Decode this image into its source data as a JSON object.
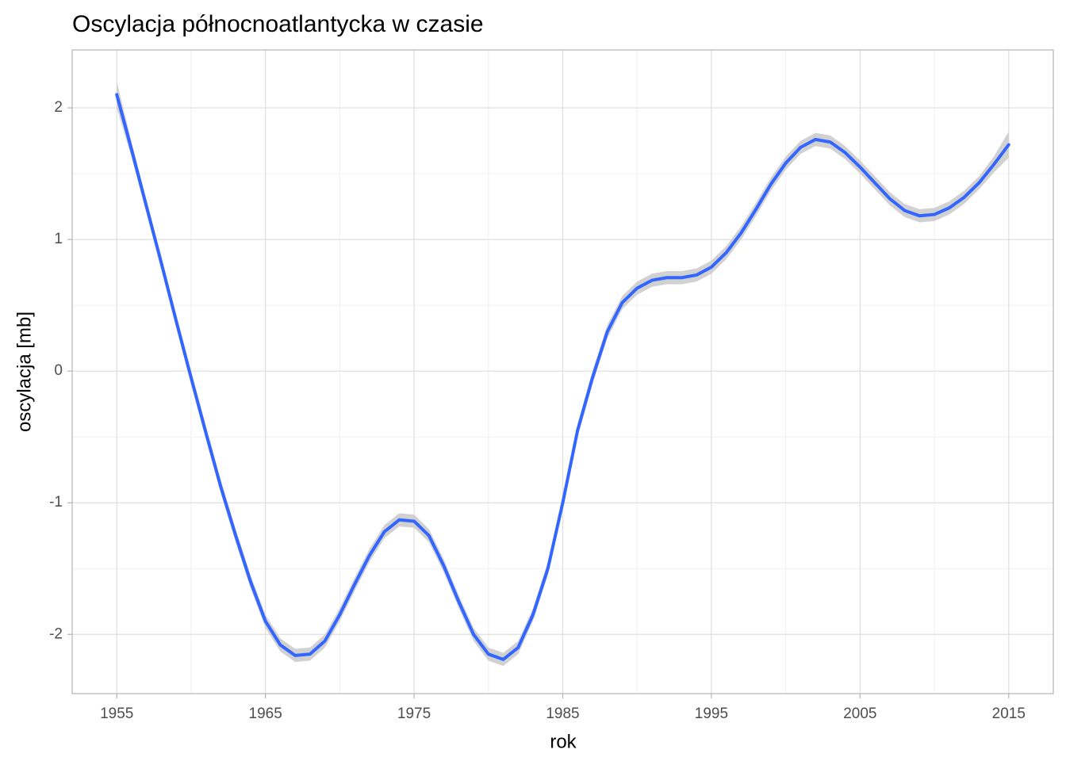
{
  "chart_data": {
    "type": "line",
    "title": "Oscylacja północnoatlantycka w czasie",
    "xlabel": "rok",
    "ylabel": "oscylacja [mb]",
    "x": [
      1955,
      1956,
      1957,
      1958,
      1959,
      1960,
      1961,
      1962,
      1963,
      1964,
      1965,
      1966,
      1967,
      1968,
      1969,
      1970,
      1971,
      1972,
      1973,
      1974,
      1975,
      1976,
      1977,
      1978,
      1979,
      1980,
      1981,
      1982,
      1983,
      1984,
      1985,
      1986,
      1987,
      1988,
      1989,
      1990,
      1991,
      1992,
      1993,
      1994,
      1995,
      1996,
      1997,
      1998,
      1999,
      2000,
      2001,
      2002,
      2003,
      2004,
      2005,
      2006,
      2007,
      2008,
      2009,
      2010,
      2011,
      2012,
      2013,
      2014,
      2015
    ],
    "series": [
      {
        "color": "#3366ff",
        "values": [
          2.1,
          1.68,
          1.25,
          0.82,
          0.38,
          -0.05,
          -0.47,
          -0.88,
          -1.25,
          -1.6,
          -1.9,
          -2.08,
          -2.16,
          -2.15,
          -2.05,
          -1.85,
          -1.62,
          -1.4,
          -1.22,
          -1.13,
          -1.14,
          -1.25,
          -1.48,
          -1.75,
          -2.0,
          -2.15,
          -2.19,
          -2.1,
          -1.85,
          -1.5,
          -1.0,
          -0.45,
          -0.05,
          0.3,
          0.52,
          0.63,
          0.69,
          0.71,
          0.71,
          0.73,
          0.79,
          0.9,
          1.05,
          1.23,
          1.42,
          1.58,
          1.7,
          1.76,
          1.74,
          1.66,
          1.55,
          1.43,
          1.31,
          1.22,
          1.18,
          1.19,
          1.24,
          1.32,
          1.43,
          1.57,
          1.72
        ]
      }
    ],
    "band": {
      "color": "#cccccc",
      "upper": [
        2.2,
        1.74,
        1.3,
        0.87,
        0.43,
        0,
        -0.42,
        -0.83,
        -1.2,
        -1.55,
        -1.85,
        -2.03,
        -2.11,
        -2.1,
        -2,
        -1.8,
        -1.57,
        -1.35,
        -1.17,
        -1.08,
        -1.09,
        -1.2,
        -1.43,
        -1.7,
        -1.95,
        -2.1,
        -2.14,
        -2.05,
        -1.8,
        -1.45,
        -0.95,
        -0.4,
        0,
        0.35,
        0.57,
        0.68,
        0.74,
        0.76,
        0.76,
        0.78,
        0.84,
        0.95,
        1.1,
        1.28,
        1.47,
        1.63,
        1.75,
        1.81,
        1.79,
        1.71,
        1.6,
        1.48,
        1.36,
        1.27,
        1.23,
        1.24,
        1.29,
        1.37,
        1.48,
        1.63,
        1.82
      ],
      "lower": [
        2.0,
        1.62,
        1.2,
        0.77,
        0.33,
        -0.1,
        -0.52,
        -0.93,
        -1.3,
        -1.65,
        -1.95,
        -2.13,
        -2.21,
        -2.2,
        -2.1,
        -1.9,
        -1.67,
        -1.45,
        -1.27,
        -1.18,
        -1.19,
        -1.3,
        -1.53,
        -1.8,
        -2.05,
        -2.2,
        -2.24,
        -2.15,
        -1.9,
        -1.55,
        -1.05,
        -0.5,
        -0.1,
        0.25,
        0.47,
        0.58,
        0.64,
        0.66,
        0.66,
        0.68,
        0.74,
        0.85,
        1.0,
        1.18,
        1.37,
        1.53,
        1.65,
        1.71,
        1.69,
        1.61,
        1.5,
        1.38,
        1.26,
        1.17,
        1.13,
        1.14,
        1.19,
        1.27,
        1.38,
        1.51,
        1.62
      ]
    },
    "xlim": [
      1952,
      2018
    ],
    "ylim": [
      -2.45,
      2.44
    ],
    "xticks": [
      1955,
      1965,
      1975,
      1985,
      1995,
      2005,
      2015
    ],
    "yticks": [
      -2,
      -1,
      0,
      1,
      2
    ],
    "grid": true
  }
}
